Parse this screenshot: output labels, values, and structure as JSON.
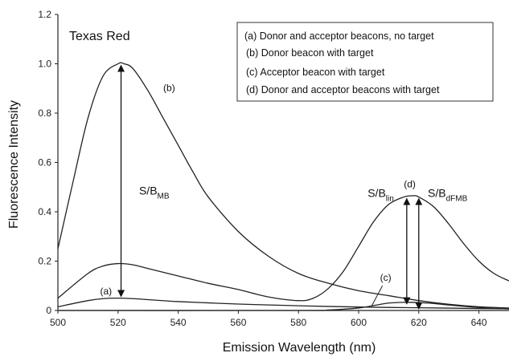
{
  "chart_data": {
    "type": "line",
    "dye_label": "Texas Red",
    "xlabel": "Emission Wavelength (nm)",
    "ylabel": "Fluorescence Intensity",
    "xlim": [
      500,
      650
    ],
    "ylim": [
      0,
      1.2
    ],
    "x_ticks": [
      "500",
      "520",
      "540",
      "560",
      "580",
      "600",
      "620",
      "640"
    ],
    "y_ticks": [
      "0",
      "0.2",
      "0.4",
      "0.6",
      "0.8",
      "1.0",
      "1.2"
    ],
    "legend": [
      "(a) Donor and acceptor beacons, no target",
      "(b) Donor beacon with target",
      "(c) Acceptor beacon with target",
      "(d) Donor and acceptor beacons with target"
    ],
    "series": [
      {
        "name": "(a)",
        "x": [
          500,
          510,
          515,
          520,
          525,
          530,
          540,
          560,
          580,
          600,
          620,
          640,
          650
        ],
        "y": [
          0.015,
          0.04,
          0.048,
          0.05,
          0.048,
          0.044,
          0.036,
          0.026,
          0.019,
          0.014,
          0.011,
          0.008,
          0.007
        ]
      },
      {
        "name": "(b)",
        "x": [
          500,
          505,
          510,
          515,
          520,
          522,
          525,
          530,
          535,
          540,
          545,
          550,
          560,
          570,
          580,
          590,
          600,
          610,
          620,
          630,
          640,
          650
        ],
        "y": [
          0.25,
          0.52,
          0.78,
          0.95,
          1.0,
          1.0,
          0.98,
          0.89,
          0.78,
          0.67,
          0.56,
          0.46,
          0.32,
          0.22,
          0.15,
          0.11,
          0.08,
          0.06,
          0.04,
          0.025,
          0.015,
          0.01
        ]
      },
      {
        "name": "(c)",
        "x": [
          500,
          580,
          590,
          600,
          605,
          610,
          615,
          620,
          625,
          630,
          640,
          650
        ],
        "y": [
          0.0,
          0.0,
          0.002,
          0.01,
          0.02,
          0.03,
          0.033,
          0.032,
          0.028,
          0.022,
          0.012,
          0.006
        ]
      },
      {
        "name": "(d)",
        "x": [
          500,
          510,
          515,
          520,
          525,
          530,
          540,
          550,
          560,
          570,
          580,
          585,
          590,
          595,
          600,
          605,
          610,
          615,
          618,
          620,
          625,
          630,
          635,
          640,
          645,
          650
        ],
        "y": [
          0.05,
          0.15,
          0.18,
          0.19,
          0.185,
          0.17,
          0.14,
          0.11,
          0.085,
          0.055,
          0.04,
          0.05,
          0.09,
          0.16,
          0.26,
          0.36,
          0.43,
          0.46,
          0.465,
          0.46,
          0.42,
          0.35,
          0.27,
          0.2,
          0.15,
          0.12
        ]
      }
    ],
    "curve_labels": [
      {
        "text": "(a)",
        "x": 516,
        "y": 0.065
      },
      {
        "text": "(b)",
        "x": 537,
        "y": 0.89
      },
      {
        "text": "(c)",
        "x": 609,
        "y": 0.12
      },
      {
        "text": "(d)",
        "x": 617,
        "y": 0.5
      }
    ],
    "arrows": [
      {
        "x": 521,
        "y_from": 0.05,
        "y_to": 1.0
      },
      {
        "x": 616,
        "y_from": 0.02,
        "y_to": 0.46
      },
      {
        "x": 620,
        "y_from": 0.0,
        "y_to": 0.46
      }
    ],
    "sb_labels": [
      {
        "base": "S/B",
        "sub": "MB",
        "x": 527,
        "y": 0.47
      },
      {
        "base": "S/B",
        "sub": "lin",
        "x": 603,
        "y": 0.46
      },
      {
        "base": "S/B",
        "sub": "dFMB",
        "x": 623,
        "y": 0.46
      }
    ]
  }
}
